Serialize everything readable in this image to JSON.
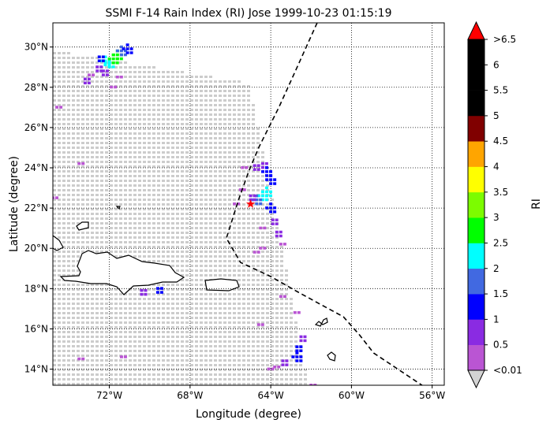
{
  "chart_data": {
    "type": "heatmap",
    "title": "SSMI F-14 Rain Index (RI) Jose 1999-10-23 01:15:19",
    "xlabel": "Longitude (degree)",
    "ylabel": "Latitude (degree)",
    "xlim": [
      -74.8,
      -55.4
    ],
    "ylim": [
      13.2,
      31.2
    ],
    "x_ticks": [
      {
        "value": -72,
        "label": "72°W"
      },
      {
        "value": -68,
        "label": "68°W"
      },
      {
        "value": -64,
        "label": "64°W"
      },
      {
        "value": -60,
        "label": "60°W"
      },
      {
        "value": -56,
        "label": "56°W"
      }
    ],
    "y_ticks": [
      {
        "value": 14,
        "label": "14°N"
      },
      {
        "value": 16,
        "label": "16°N"
      },
      {
        "value": 18,
        "label": "18°N"
      },
      {
        "value": 20,
        "label": "20°N"
      },
      {
        "value": 22,
        "label": "22°N"
      },
      {
        "value": 24,
        "label": "24°N"
      },
      {
        "value": 26,
        "label": "26°N"
      },
      {
        "value": 28,
        "label": "28°N"
      },
      {
        "value": 30,
        "label": "30°N"
      }
    ],
    "grid": true,
    "colorbar": {
      "label": "RI",
      "tick_labels": [
        "<0.01",
        "0.5",
        "1",
        "1.5",
        "2",
        "2.5",
        "3",
        "3.5",
        "4",
        "4.5",
        "5",
        "5.5",
        "6",
        ">6.5"
      ],
      "colors": [
        "#ba55d3",
        "#8a2be2",
        "#0000ff",
        "#4169e1",
        "#00ffff",
        "#00ff00",
        "#7cfc00",
        "#ffff00",
        "#ffa500",
        "#800000",
        "#000000",
        "#000000",
        "#000000"
      ],
      "over_color": "#ff0000",
      "under_color": "#d3d3d3"
    },
    "swath_color": "#cccccc",
    "storm_center": {
      "lon": -65.0,
      "lat": 22.2,
      "marker": "star",
      "color": "#ff0000"
    },
    "track": [
      [
        -61.7,
        31.2
      ],
      [
        -62.6,
        29.2
      ],
      [
        -63.6,
        27.0
      ],
      [
        -64.6,
        25.0
      ],
      [
        -65.1,
        23.8
      ],
      [
        -65.6,
        22.4
      ],
      [
        -66.2,
        20.5
      ],
      [
        -65.5,
        19.3
      ],
      [
        -64.0,
        18.6
      ],
      [
        -62.6,
        17.8
      ],
      [
        -61.5,
        17.2
      ],
      [
        -60.4,
        16.6
      ],
      [
        -59.6,
        15.7
      ],
      [
        -58.9,
        14.8
      ],
      [
        -58.0,
        14.2
      ],
      [
        -56.8,
        13.4
      ],
      [
        -56.5,
        13.2
      ]
    ],
    "rain_cells": [
      {
        "lon": -72.2,
        "lat": 29.3,
        "ri": 2.3
      },
      {
        "lon": -72.0,
        "lat": 29.2,
        "ri": 2.2
      },
      {
        "lon": -71.8,
        "lat": 29.4,
        "ri": 2.6
      },
      {
        "lon": -71.6,
        "lat": 29.6,
        "ri": 2.8
      },
      {
        "lon": -71.4,
        "lat": 29.8,
        "ri": 1.6
      },
      {
        "lon": -71.1,
        "lat": 29.9,
        "ri": 1.2
      },
      {
        "lon": -72.5,
        "lat": 29.5,
        "ri": 1.0
      },
      {
        "lon": -72.6,
        "lat": 29.0,
        "ri": 0.6
      },
      {
        "lon": -73.0,
        "lat": 28.6,
        "ri": 0.4
      },
      {
        "lon": -73.2,
        "lat": 28.4,
        "ri": 0.5
      },
      {
        "lon": -71.6,
        "lat": 28.5,
        "ri": 0.3
      },
      {
        "lon": -71.9,
        "lat": 28.0,
        "ri": 0.2
      },
      {
        "lon": -72.3,
        "lat": 28.8,
        "ri": 0.7
      },
      {
        "lon": -74.6,
        "lat": 27.0,
        "ri": 0.2
      },
      {
        "lon": -73.5,
        "lat": 24.2,
        "ri": 0.2
      },
      {
        "lon": -74.8,
        "lat": 22.5,
        "ri": 0.3
      },
      {
        "lon": -65.4,
        "lat": 24.0,
        "ri": 0.2
      },
      {
        "lon": -64.8,
        "lat": 24.1,
        "ri": 0.5
      },
      {
        "lon": -64.4,
        "lat": 24.2,
        "ri": 0.8
      },
      {
        "lon": -64.2,
        "lat": 23.8,
        "ri": 1.1
      },
      {
        "lon": -64.0,
        "lat": 23.4,
        "ri": 1.4
      },
      {
        "lon": -64.2,
        "lat": 22.8,
        "ri": 2.1
      },
      {
        "lon": -64.4,
        "lat": 22.6,
        "ri": 2.4
      },
      {
        "lon": -64.7,
        "lat": 22.4,
        "ri": 1.6
      },
      {
        "lon": -65.0,
        "lat": 22.6,
        "ri": 0.7
      },
      {
        "lon": -65.5,
        "lat": 22.9,
        "ri": 0.3
      },
      {
        "lon": -65.8,
        "lat": 22.2,
        "ri": 0.2
      },
      {
        "lon": -64.0,
        "lat": 22.0,
        "ri": 1.2
      },
      {
        "lon": -63.9,
        "lat": 21.4,
        "ri": 0.9
      },
      {
        "lon": -63.7,
        "lat": 20.8,
        "ri": 0.6
      },
      {
        "lon": -63.5,
        "lat": 20.2,
        "ri": 0.4
      },
      {
        "lon": -64.5,
        "lat": 20.0,
        "ri": 0.2
      },
      {
        "lon": -64.8,
        "lat": 19.8,
        "ri": 0.3
      },
      {
        "lon": -64.5,
        "lat": 21.0,
        "ri": 0.3
      },
      {
        "lon": -63.5,
        "lat": 17.6,
        "ri": 0.2
      },
      {
        "lon": -64.6,
        "lat": 16.2,
        "ri": 0.2
      },
      {
        "lon": -62.8,
        "lat": 16.8,
        "ri": 0.4
      },
      {
        "lon": -62.5,
        "lat": 15.6,
        "ri": 0.7
      },
      {
        "lon": -62.7,
        "lat": 15.1,
        "ri": 1.0
      },
      {
        "lon": -62.7,
        "lat": 14.6,
        "ri": 1.3
      },
      {
        "lon": -63.4,
        "lat": 14.4,
        "ri": 0.5
      },
      {
        "lon": -63.8,
        "lat": 14.1,
        "ri": 0.3
      },
      {
        "lon": -64.1,
        "lat": 14.0,
        "ri": 0.2
      },
      {
        "lon": -62.0,
        "lat": 13.2,
        "ri": 0.3
      },
      {
        "lon": -69.6,
        "lat": 18.0,
        "ri": 1.0
      },
      {
        "lon": -70.4,
        "lat": 17.9,
        "ri": 0.8
      },
      {
        "lon": -71.4,
        "lat": 14.6,
        "ri": 0.2
      },
      {
        "lon": -73.5,
        "lat": 14.5,
        "ri": 0.2
      }
    ]
  }
}
